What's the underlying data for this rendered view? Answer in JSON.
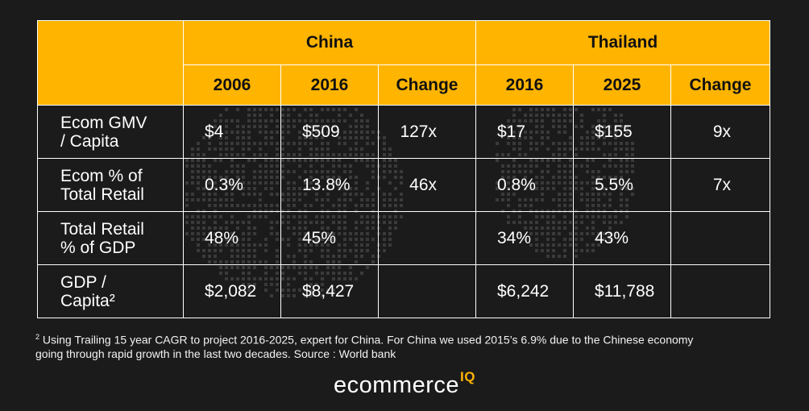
{
  "header": {
    "china": "China",
    "thailand": "Thailand",
    "years": [
      "2006",
      "2016",
      "Change",
      "2016",
      "2025",
      "Change"
    ]
  },
  "rows": [
    {
      "label1": "Ecom GMV",
      "label2": "/ Capita",
      "values": [
        "$4",
        "$509",
        "127x",
        "$17",
        "$155",
        "9x"
      ]
    },
    {
      "label1": "Ecom % of",
      "label2": "Total Retail",
      "values": [
        "0.3%",
        "13.8%",
        "46x",
        "0.8%",
        "5.5%",
        "7x"
      ]
    },
    {
      "label1": "Total Retail",
      "label2": "% of GDP",
      "values": [
        "48%",
        "45%",
        "",
        "34%",
        "43%",
        ""
      ]
    },
    {
      "label1": "GDP /",
      "label2": "Capita²",
      "values": [
        "$2,082",
        "$8,427",
        "",
        "$6,242",
        "$11,788",
        ""
      ]
    }
  ],
  "footnote": {
    "marker": "2",
    "line1": "Using Trailing 15 year CAGR to project 2016-2025, expert for China. For China we used 2015’s 6.9% due to the Chinese economy",
    "line2": "going through rapid growth in the last two decades. Source : World bank"
  },
  "logo": {
    "text": "ecommerce",
    "suffix": "IQ"
  },
  "colors": {
    "background": "#1b1b1b",
    "header": "#ffb400",
    "text": "#ffffff",
    "dots": "#3a3a3a"
  }
}
